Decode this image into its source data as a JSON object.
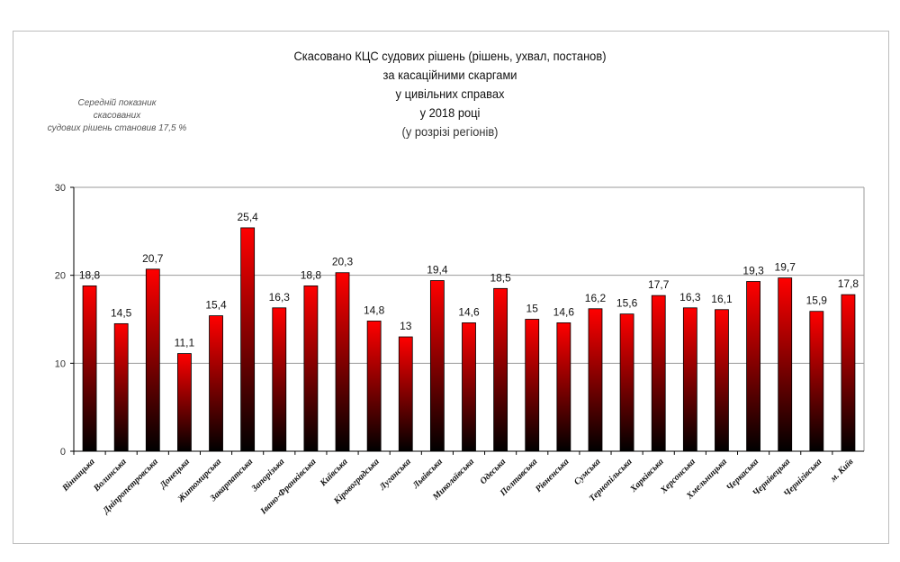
{
  "chart_data": {
    "type": "bar",
    "title": [
      "Скасовано КЦС судових рішень (рішень, ухвал, постанов)",
      "за касаційними скаргами",
      "у цивільних справах",
      "у 2018 році"
    ],
    "subtitle": "(у розрізі регіонів)",
    "annotation": [
      "Середній показник",
      "скасованих",
      "судових рішень становив 17,5 %"
    ],
    "categories": [
      "Вінницька",
      "Волинська",
      "Дніпропетровська",
      "Донецька",
      "Житомирська",
      "Закарпатська",
      "Запорізька",
      "Івано-Франківська",
      "Київська",
      "Кіровоградська",
      "Луганська",
      "Львівська",
      "Миколаївська",
      "Одеська",
      "Полтавська",
      "Рівненська",
      "Сумська",
      "Тернопільська",
      "Харківська",
      "Херсонська",
      "Хмельницька",
      "Черкаська",
      "Чернівецька",
      "Чернігівська",
      "м. Київ"
    ],
    "values": [
      18.8,
      14.5,
      20.7,
      11.1,
      15.4,
      25.4,
      16.3,
      18.8,
      20.3,
      14.8,
      13,
      19.4,
      14.6,
      18.5,
      15,
      14.6,
      16.2,
      15.6,
      17.7,
      16.3,
      16.1,
      19.3,
      19.7,
      15.9,
      17.8
    ],
    "value_labels": [
      "18,8",
      "14,5",
      "20,7",
      "11,1",
      "15,4",
      "25,4",
      "16,3",
      "18,8",
      "20,3",
      "14,8",
      "13",
      "19,4",
      "14,6",
      "18,5",
      "15",
      "14,6",
      "16,2",
      "15,6",
      "17,7",
      "16,3",
      "16,1",
      "19,3",
      "19,7",
      "15,9",
      "17,8"
    ],
    "ylim": [
      0,
      30
    ],
    "yticks": [
      "0",
      "10",
      "20",
      "30"
    ],
    "grid": true,
    "bar_color_top": "#ff0000",
    "bar_color_bottom": "#000000",
    "xlabel": "",
    "ylabel": ""
  }
}
